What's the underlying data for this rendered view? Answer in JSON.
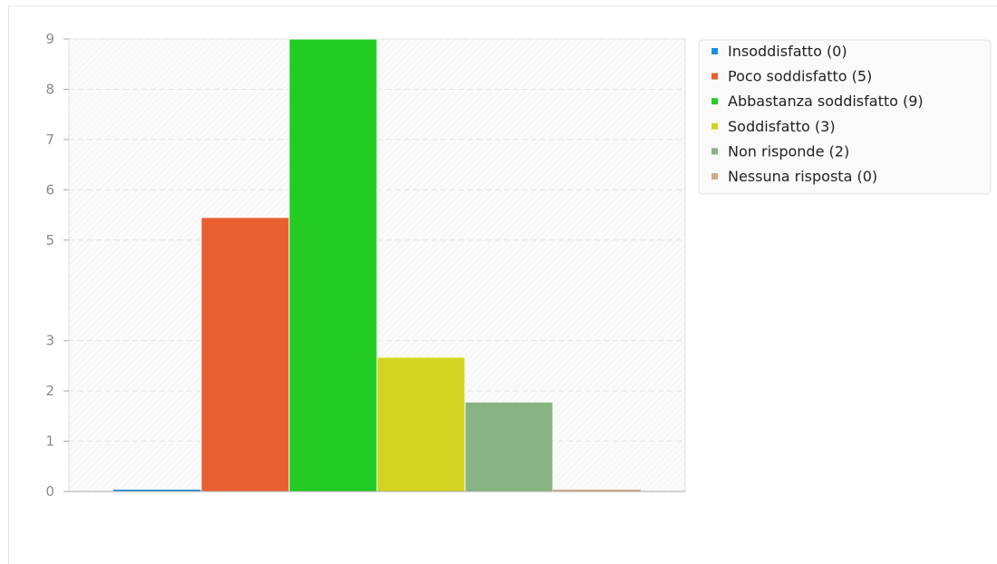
{
  "chart_data": {
    "type": "bar",
    "categories": [
      "Insoddisfatto (0)",
      "Poco soddisfatto (5)",
      "Abbastanza soddisfatto (9)",
      "Soddisfatto (3)",
      "Non risponde (2)",
      "Nessuna risposta (0)"
    ],
    "values": [
      0,
      5.45,
      9,
      2.67,
      1.78,
      0
    ],
    "colors": [
      "#1f8ddb",
      "#e85f31",
      "#22cc22",
      "#d2d41f",
      "#88b382",
      "#d4aa82"
    ],
    "ylim": [
      0,
      9
    ],
    "yticks": [
      "0",
      "1",
      "2",
      "3",
      "5",
      "6",
      "7",
      "8",
      "9"
    ],
    "ytick_values": [
      0,
      1,
      2,
      3,
      5,
      6,
      7,
      8,
      9
    ],
    "grid": true,
    "legend_position": "top-right"
  }
}
